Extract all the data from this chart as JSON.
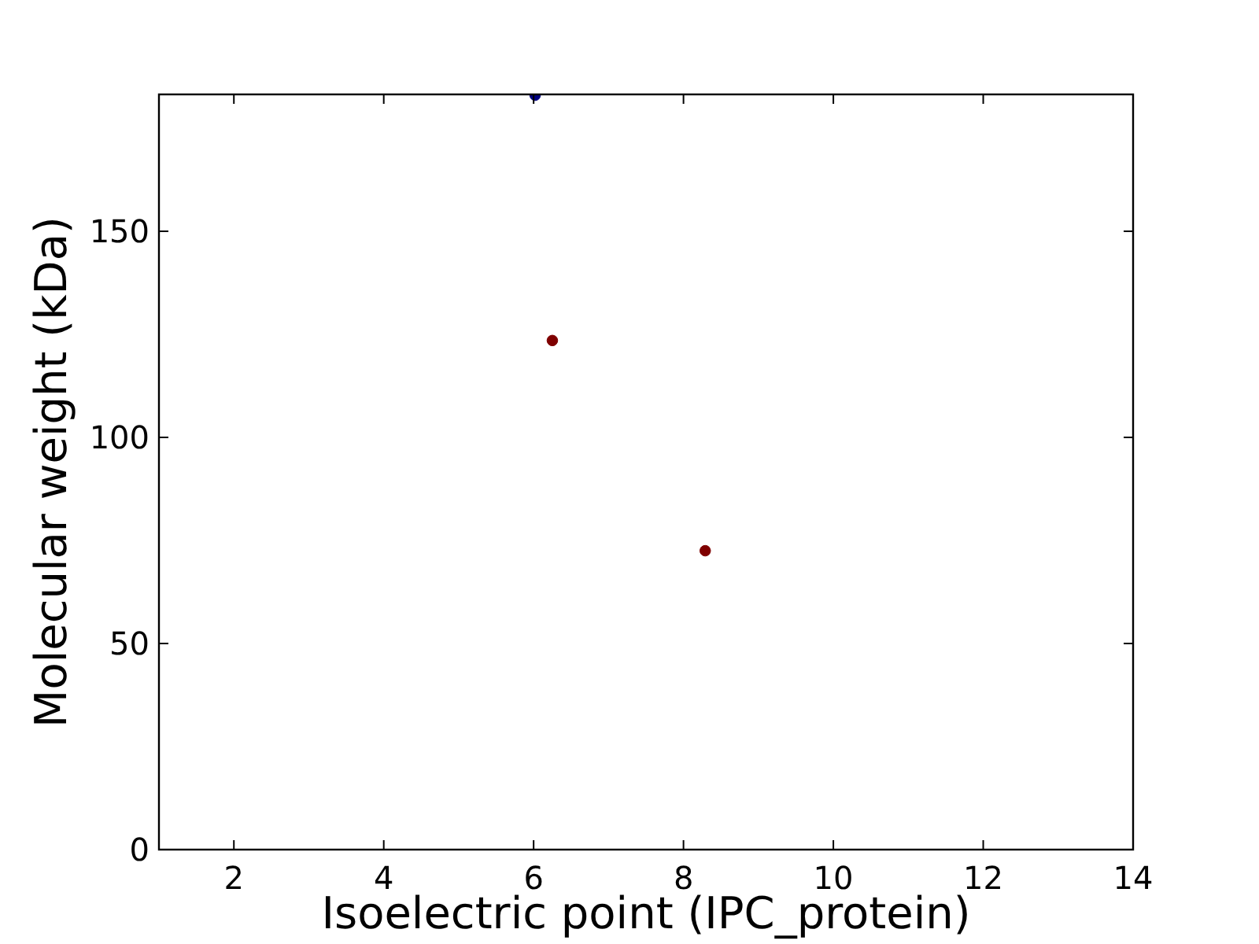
{
  "chart_data": {
    "type": "scatter",
    "xlabel": "Isoelectric point (IPC_protein)",
    "ylabel": "Molecular weight (kDa)",
    "x": [
      6.02,
      6.25,
      8.29
    ],
    "values": [
      183,
      123.5,
      72.5
    ],
    "colors": [
      "#00007f",
      "#7f0000",
      "#7f0000"
    ],
    "xlim": [
      1,
      14
    ],
    "ylim": [
      0,
      183.2
    ],
    "xticks": [
      2,
      4,
      6,
      8,
      10,
      12,
      14
    ],
    "yticks": [
      0,
      50,
      100,
      150
    ],
    "marker": "circle",
    "grid": false
  }
}
